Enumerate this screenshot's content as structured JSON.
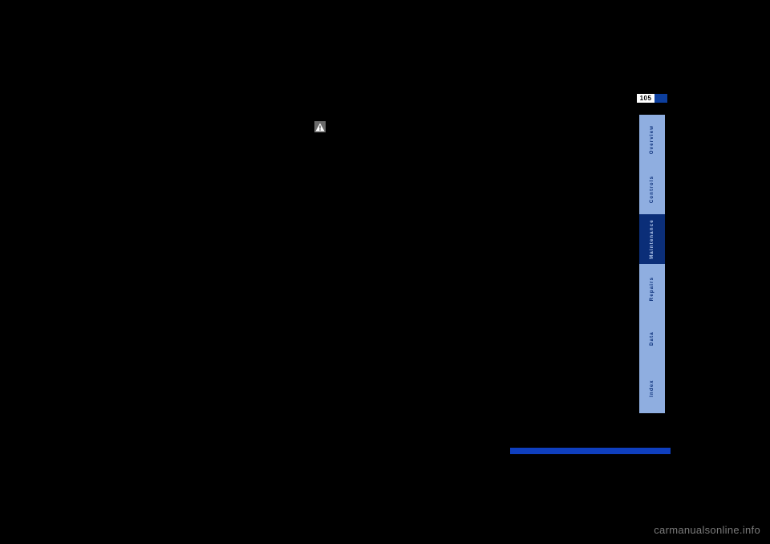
{
  "page": {
    "number": "105",
    "number_bg": "#ffffff",
    "number_color": "#000000",
    "stripe_color": "#0d3f9e"
  },
  "tabs": [
    {
      "label": "Overview",
      "height": 62,
      "bg": "#8faee0",
      "color": "#0a2e78",
      "active": false
    },
    {
      "label": "Controls",
      "height": 62,
      "bg": "#8faee0",
      "color": "#0a2e78",
      "active": false
    },
    {
      "label": "Maintenance",
      "height": 62,
      "bg": "#0b2e78",
      "color": "#b9cdef",
      "active": true
    },
    {
      "label": "Repairs",
      "height": 62,
      "bg": "#8faee0",
      "color": "#0a2e78",
      "active": false
    },
    {
      "label": "Data",
      "height": 62,
      "bg": "#8faee0",
      "color": "#0a2e78",
      "active": false
    },
    {
      "label": "Index",
      "height": 62,
      "bg": "#8faee0",
      "color": "#0a2e78",
      "active": false
    }
  ],
  "icons": {
    "warning_bg": "#6a6a6a",
    "warning_triangle": "#ffffff",
    "warning_mark": "#6a6a6a",
    "bullet_color": "#000000"
  },
  "footer_blur_color": "#0f3fbf",
  "watermark": {
    "text": "carmanualsonline.info",
    "color": "#7b7b7b"
  }
}
